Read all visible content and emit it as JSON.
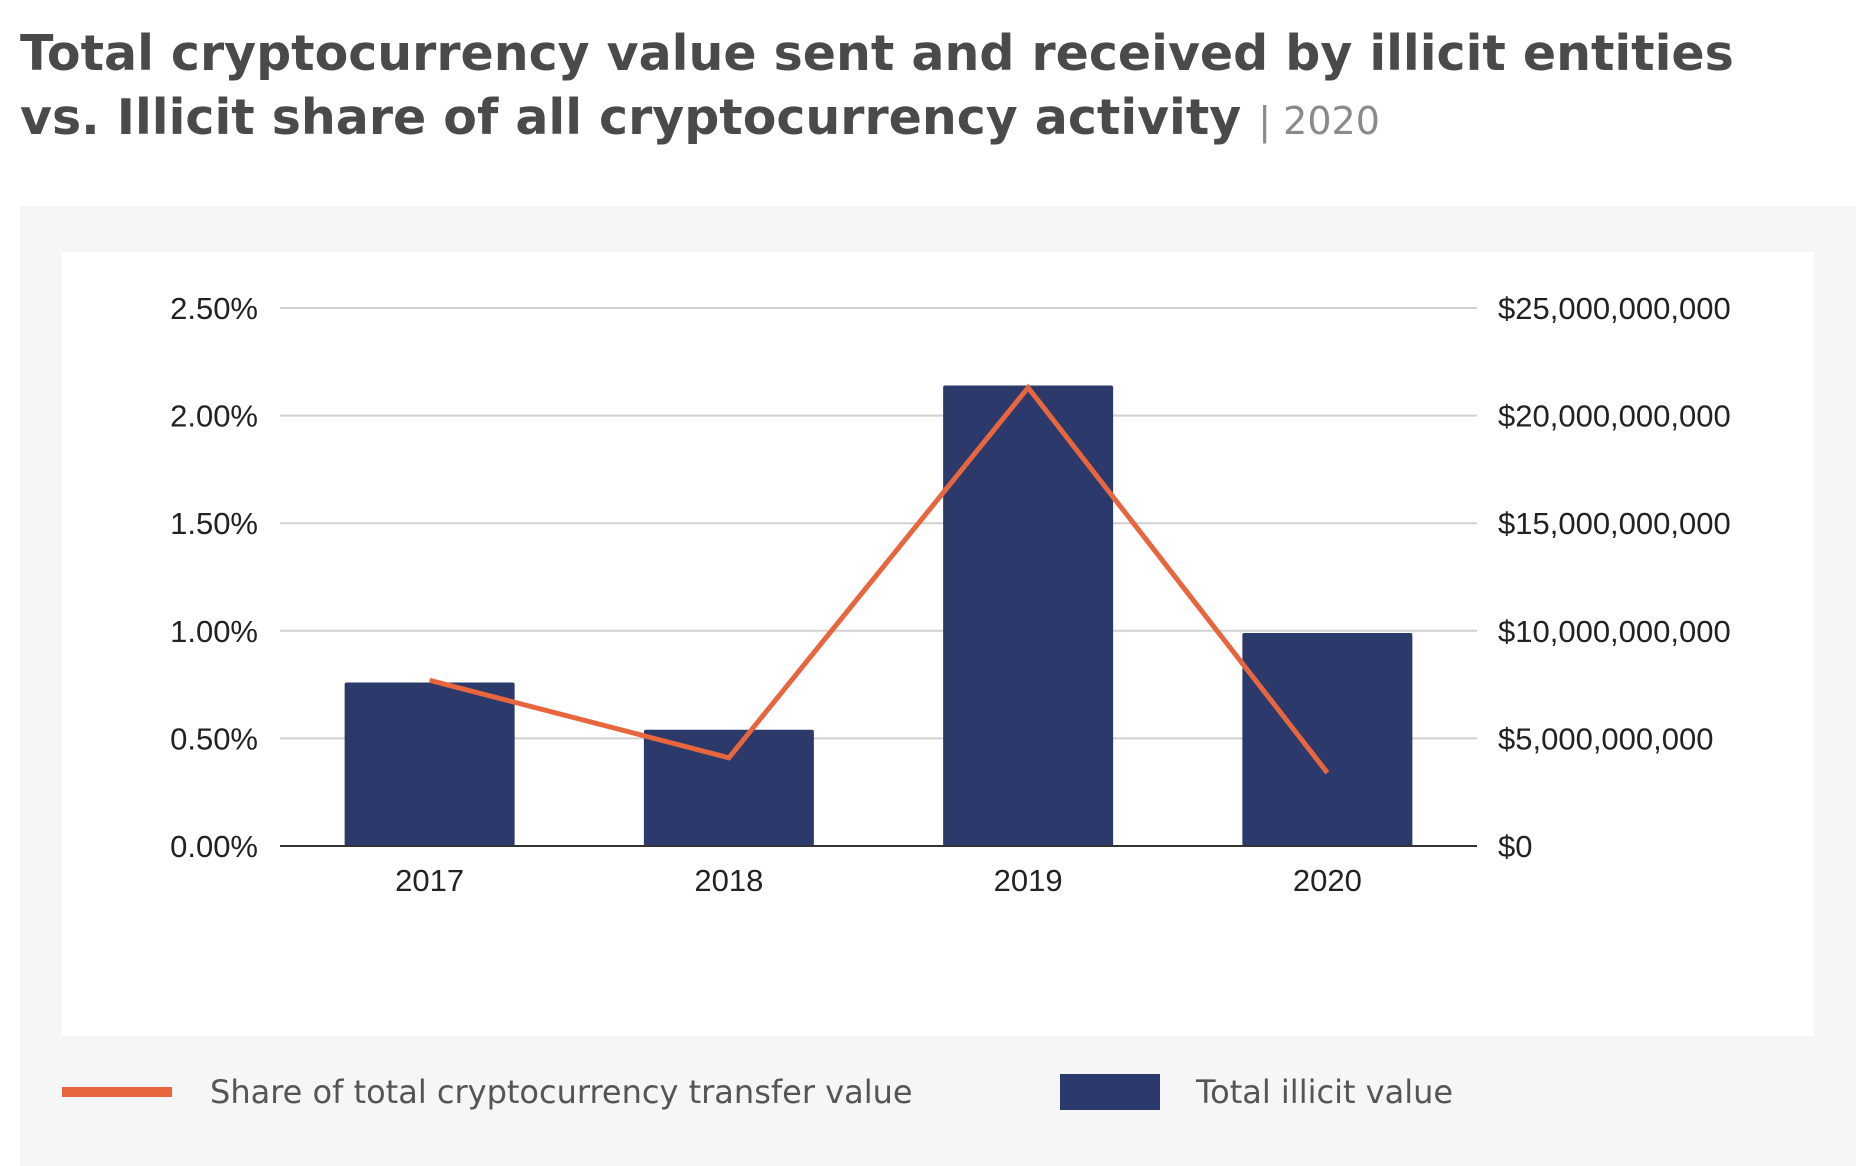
{
  "title": {
    "text": "Total cryptocurrency value sent and received by illicit entities vs. Illicit share of all cryptocurrency activity",
    "year_tag": "| 2020"
  },
  "colors": {
    "bar": "#2b3a6b",
    "line": "#e8663d",
    "grid": "#d0d0d0",
    "panel": "#f6f6f6"
  },
  "chart_data": {
    "type": "bar",
    "categories": [
      "2017",
      "2018",
      "2019",
      "2020"
    ],
    "series": [
      {
        "name": "Total illicit value",
        "type": "bar",
        "axis": "right",
        "values": [
          7600000000,
          5400000000,
          21400000000,
          9900000000
        ]
      },
      {
        "name": "Share of total cryptocurrency transfer value",
        "type": "line",
        "axis": "left",
        "values": [
          0.77,
          0.41,
          2.13,
          0.34
        ]
      }
    ],
    "y_left": {
      "min": 0,
      "max": 2.5,
      "ticks": [
        "0.00%",
        "0.50%",
        "1.00%",
        "1.50%",
        "2.00%",
        "2.50%"
      ]
    },
    "y_right": {
      "min": 0,
      "max": 25000000000,
      "ticks": [
        "$0",
        "$5,000,000,000",
        "$10,000,000,000",
        "$15,000,000,000",
        "$20,000,000,000",
        "$25,000,000,000"
      ]
    },
    "legend": [
      "Share of total cryptocurrency transfer value",
      "Total illicit value"
    ],
    "grid": true
  }
}
